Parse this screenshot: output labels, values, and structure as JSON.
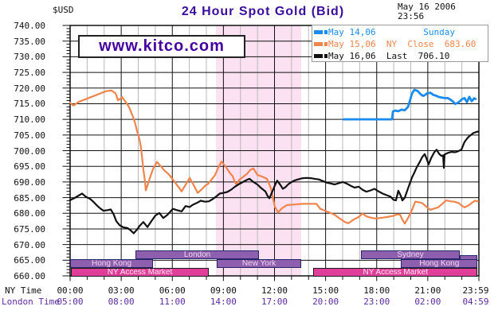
{
  "header": {
    "currency": "$USD",
    "title": "24 Hour Spot Gold (Bid)",
    "date": "May 16 2006",
    "time": "23:56"
  },
  "watermark": "www.kitco.com",
  "legend": {
    "rows": [
      {
        "name": "may-14",
        "color": "#1B8CEF",
        "text": "May 14,06         Sunday"
      },
      {
        "name": "may-15",
        "color": "#F0854C",
        "text": "May 15,06  NY  Close  683.60"
      },
      {
        "name": "may-16",
        "color": "#111111",
        "text": "May 16,06  Last  706.10"
      }
    ]
  },
  "axes": {
    "y_ticks": [
      "740.00",
      "735.00",
      "730.00",
      "725.00",
      "720.00",
      "715.00",
      "710.00",
      "705.00",
      "700.00",
      "695.00",
      "690.00",
      "685.00",
      "680.00",
      "675.00",
      "670.00",
      "665.00",
      "660.00"
    ],
    "ny_label": "NY Time",
    "london_label": "London Time",
    "tick_hours": [
      0,
      3,
      6,
      9,
      12,
      15,
      18,
      21,
      24
    ],
    "ny_times": [
      "00:00",
      "03:00",
      "06:00",
      "09:00",
      "12:00",
      "15:00",
      "18:00",
      "21:00",
      "23:59"
    ],
    "london_times": [
      "05:00",
      "08:00",
      "11:00",
      "14:00",
      "17:00",
      "20:00",
      "23:00",
      "02:00",
      "04:59"
    ]
  },
  "market_bars": [
    {
      "label": "Hong Kong",
      "kind": "session",
      "row": 2,
      "t0": 0,
      "t1": 4.87
    },
    {
      "label": "London",
      "kind": "session",
      "row": 1,
      "t0": 3.84,
      "t1": 11.09
    },
    {
      "label": "New York",
      "kind": "session",
      "row": 2,
      "t0": 8.61,
      "t1": 13.57
    },
    {
      "label": "Sydney",
      "kind": "session",
      "row": 1,
      "t0": 17.08,
      "t1": 22.88
    },
    {
      "label": "",
      "kind": "session",
      "row": 1.5,
      "t0": 22.88,
      "t1": 23.93
    },
    {
      "label": "Hong Kong",
      "kind": "session",
      "row": 2,
      "t0": 19.42,
      "t1": 23.93
    },
    {
      "label": "NY Access Market",
      "kind": "access",
      "row": 3,
      "t0": 0.05,
      "t1": 8.14
    },
    {
      "label": "NY Access Market",
      "kind": "access",
      "row": 3,
      "t0": 14.27,
      "t1": 23.93
    }
  ],
  "chart_data": {
    "type": "line",
    "title": "24 Hour Spot Gold (Bid)",
    "ylabel": "$USD",
    "x_unit": "hours, NY time (00:00-23:59)",
    "x_range": [
      0,
      24
    ],
    "ylim": [
      660,
      740
    ],
    "y_step": 5,
    "grid": "hourly gray verticals, 3-hour black verticals, 5.00 black horizontals",
    "session_band": {
      "start": 8.56,
      "end": 13.57,
      "color": "#FBE1F1",
      "note": "NY open-outcry session shading"
    },
    "series": [
      {
        "name": "May 14,06 (Sunday)",
        "color": "#1B8CEF",
        "width": 2.8,
        "points": [
          [
            16.05,
            710
          ],
          [
            18.9,
            710
          ],
          [
            18.95,
            712.5
          ],
          [
            19.09,
            712.8
          ],
          [
            19.27,
            712.6
          ],
          [
            19.46,
            713.1
          ],
          [
            19.65,
            712.9
          ],
          [
            19.84,
            714
          ],
          [
            19.98,
            716.5
          ],
          [
            20.07,
            718.2
          ],
          [
            20.21,
            719.4
          ],
          [
            20.35,
            719.2
          ],
          [
            20.44,
            718.9
          ],
          [
            20.58,
            718
          ],
          [
            20.72,
            717.5
          ],
          [
            20.82,
            717.7
          ],
          [
            20.96,
            718.3
          ],
          [
            21.15,
            718.5
          ],
          [
            21.33,
            717.8
          ],
          [
            21.52,
            717.5
          ],
          [
            21.61,
            717.2
          ],
          [
            21.8,
            717
          ],
          [
            21.99,
            716.8
          ],
          [
            22.17,
            716.8
          ],
          [
            22.36,
            716.2
          ],
          [
            22.5,
            715.6
          ],
          [
            22.6,
            714.9
          ],
          [
            22.74,
            715.2
          ],
          [
            22.88,
            715.8
          ],
          [
            23.02,
            716.5
          ],
          [
            23.16,
            716.8
          ],
          [
            23.3,
            715.5
          ],
          [
            23.44,
            717.2
          ],
          [
            23.58,
            715.8
          ],
          [
            23.72,
            716.7
          ],
          [
            23.81,
            716.5
          ]
        ]
      },
      {
        "name": "May 15,06",
        "color": "#F0854C",
        "width": 2.2,
        "ny_close": 683.6,
        "points": [
          [
            0,
            715.3
          ],
          [
            0.2,
            714.4
          ],
          [
            0.5,
            715.6
          ],
          [
            0.8,
            716.2
          ],
          [
            1.26,
            717.2
          ],
          [
            1.73,
            718.2
          ],
          [
            2.11,
            719
          ],
          [
            2.43,
            719.2
          ],
          [
            2.55,
            718.8
          ],
          [
            2.67,
            718.3
          ],
          [
            2.81,
            716.1
          ],
          [
            2.95,
            716.6
          ],
          [
            3.04,
            717.2
          ],
          [
            3.27,
            715.5
          ],
          [
            3.46,
            713.9
          ],
          [
            3.6,
            712.1
          ],
          [
            3.74,
            710.1
          ],
          [
            3.84,
            708.3
          ],
          [
            3.93,
            706.2
          ],
          [
            4.07,
            703.7
          ],
          [
            4.16,
            701.1
          ],
          [
            4.21,
            698.6
          ],
          [
            4.3,
            694
          ],
          [
            4.4,
            690
          ],
          [
            4.44,
            687.3
          ],
          [
            4.54,
            688.8
          ],
          [
            4.68,
            691.2
          ],
          [
            4.87,
            694.2
          ],
          [
            5.1,
            696.4
          ],
          [
            5.33,
            695
          ],
          [
            5.57,
            693.5
          ],
          [
            5.8,
            692.4
          ],
          [
            6.08,
            690.4
          ],
          [
            6.36,
            688.4
          ],
          [
            6.55,
            687
          ],
          [
            6.78,
            689.1
          ],
          [
            7.02,
            691.3
          ],
          [
            7.25,
            689
          ],
          [
            7.49,
            686.5
          ],
          [
            7.72,
            687.6
          ],
          [
            7.95,
            688.9
          ],
          [
            8.09,
            689.3
          ],
          [
            8.28,
            690.6
          ],
          [
            8.51,
            692.2
          ],
          [
            8.7,
            694.6
          ],
          [
            8.89,
            696.5
          ],
          [
            9.12,
            695
          ],
          [
            9.36,
            693
          ],
          [
            9.54,
            691.9
          ],
          [
            9.68,
            689.9
          ],
          [
            9.78,
            689.1
          ],
          [
            9.92,
            690.6
          ],
          [
            10.15,
            691.6
          ],
          [
            10.39,
            692.6
          ],
          [
            10.57,
            693.8
          ],
          [
            10.76,
            694.3
          ],
          [
            10.99,
            692.3
          ],
          [
            11.23,
            691.8
          ],
          [
            11.56,
            691
          ],
          [
            11.79,
            688
          ],
          [
            12.02,
            682.1
          ],
          [
            12.21,
            680.3
          ],
          [
            12.44,
            681.6
          ],
          [
            12.72,
            682.6
          ],
          [
            13.19,
            682.8
          ],
          [
            13.66,
            683
          ],
          [
            14.13,
            683
          ],
          [
            14.46,
            683
          ],
          [
            14.69,
            681.4
          ],
          [
            14.97,
            680.8
          ],
          [
            15.25,
            680.2
          ],
          [
            15.53,
            679.5
          ],
          [
            15.91,
            678
          ],
          [
            16.14,
            677.2
          ],
          [
            16.33,
            676.8
          ],
          [
            16.65,
            678
          ],
          [
            16.94,
            678.8
          ],
          [
            17.17,
            679.9
          ],
          [
            17.4,
            679
          ],
          [
            17.73,
            678.5
          ],
          [
            17.96,
            678.3
          ],
          [
            18.34,
            678.6
          ],
          [
            18.71,
            678.9
          ],
          [
            18.99,
            679.2
          ],
          [
            19.18,
            679.6
          ],
          [
            19.37,
            679.6
          ],
          [
            19.51,
            677.9
          ],
          [
            19.65,
            676.7
          ],
          [
            19.84,
            678.5
          ],
          [
            20.07,
            681
          ],
          [
            20.26,
            683.7
          ],
          [
            20.49,
            683.5
          ],
          [
            20.68,
            683.2
          ],
          [
            20.91,
            682.1
          ],
          [
            21.15,
            681.1
          ],
          [
            21.38,
            681.5
          ],
          [
            21.61,
            681.9
          ],
          [
            21.85,
            683
          ],
          [
            22.08,
            684.1
          ],
          [
            22.36,
            683.8
          ],
          [
            22.55,
            683.7
          ],
          [
            22.83,
            683.2
          ],
          [
            23.02,
            682.3
          ],
          [
            23.16,
            681.9
          ],
          [
            23.39,
            682.5
          ],
          [
            23.58,
            683.3
          ],
          [
            23.77,
            684
          ],
          [
            23.95,
            683.8
          ]
        ]
      },
      {
        "name": "May 16,06",
        "color": "#111111",
        "width": 2.2,
        "last": 706.1,
        "points": [
          [
            0,
            684.2
          ],
          [
            0.23,
            684.8
          ],
          [
            0.42,
            685.4
          ],
          [
            0.7,
            686.3
          ],
          [
            0.94,
            685.2
          ],
          [
            1.17,
            684.6
          ],
          [
            1.4,
            683.5
          ],
          [
            1.59,
            682.4
          ],
          [
            1.78,
            681.5
          ],
          [
            1.96,
            680.8
          ],
          [
            2.2,
            681
          ],
          [
            2.39,
            681.2
          ],
          [
            2.57,
            679.5
          ],
          [
            2.71,
            677.5
          ],
          [
            2.9,
            676.2
          ],
          [
            3.13,
            675.5
          ],
          [
            3.37,
            675.3
          ],
          [
            3.56,
            674.5
          ],
          [
            3.74,
            673.6
          ],
          [
            3.93,
            674.8
          ],
          [
            4.07,
            675.9
          ],
          [
            4.3,
            677.2
          ],
          [
            4.54,
            675.6
          ],
          [
            4.77,
            677.5
          ],
          [
            5.01,
            679.3
          ],
          [
            5.24,
            680.1
          ],
          [
            5.47,
            678.5
          ],
          [
            5.71,
            679.5
          ],
          [
            6.03,
            681.4
          ],
          [
            6.27,
            681
          ],
          [
            6.55,
            680.6
          ],
          [
            6.78,
            682.3
          ],
          [
            7.02,
            682
          ],
          [
            7.2,
            682.7
          ],
          [
            7.44,
            683.3
          ],
          [
            7.67,
            684
          ],
          [
            7.91,
            683.7
          ],
          [
            8.14,
            683.8
          ],
          [
            8.37,
            684.5
          ],
          [
            8.61,
            685.5
          ],
          [
            8.79,
            686.3
          ],
          [
            8.98,
            686.5
          ],
          [
            9.22,
            686.8
          ],
          [
            9.45,
            687.5
          ],
          [
            9.68,
            688.5
          ],
          [
            9.92,
            689.3
          ],
          [
            10.15,
            690
          ],
          [
            10.39,
            690.7
          ],
          [
            10.53,
            691
          ],
          [
            10.76,
            690
          ],
          [
            10.99,
            689.2
          ],
          [
            11.23,
            688
          ],
          [
            11.46,
            687
          ],
          [
            11.6,
            685.5
          ],
          [
            11.7,
            684.8
          ],
          [
            11.88,
            687
          ],
          [
            12.07,
            689.5
          ],
          [
            12.16,
            690.4
          ],
          [
            12.35,
            689
          ],
          [
            12.49,
            687.8
          ],
          [
            12.63,
            688.3
          ],
          [
            12.82,
            689.3
          ],
          [
            13.01,
            690
          ],
          [
            13.19,
            690.5
          ],
          [
            13.43,
            690.9
          ],
          [
            13.66,
            691.2
          ],
          [
            13.89,
            691.3
          ],
          [
            14.13,
            691.2
          ],
          [
            14.36,
            691
          ],
          [
            14.6,
            690.8
          ],
          [
            14.83,
            690.3
          ],
          [
            15.06,
            689.8
          ],
          [
            15.3,
            689.5
          ],
          [
            15.53,
            689.2
          ],
          [
            15.77,
            689.6
          ],
          [
            16,
            690
          ],
          [
            16.23,
            689.5
          ],
          [
            16.47,
            688.8
          ],
          [
            16.7,
            688.2
          ],
          [
            16.94,
            688.5
          ],
          [
            17.17,
            687.5
          ],
          [
            17.4,
            686.9
          ],
          [
            17.64,
            687.3
          ],
          [
            17.87,
            687.8
          ],
          [
            18.1,
            687
          ],
          [
            18.34,
            686.3
          ],
          [
            18.57,
            685.8
          ],
          [
            18.81,
            685.3
          ],
          [
            18.99,
            684.3
          ],
          [
            19.13,
            684.1
          ],
          [
            19.27,
            687.2
          ],
          [
            19.42,
            685.5
          ],
          [
            19.51,
            684.1
          ],
          [
            19.65,
            685
          ],
          [
            19.84,
            688
          ],
          [
            20.07,
            691.4
          ],
          [
            20.21,
            693
          ],
          [
            20.35,
            694.7
          ],
          [
            20.54,
            696.5
          ],
          [
            20.68,
            698
          ],
          [
            20.82,
            698.9
          ],
          [
            20.96,
            697
          ],
          [
            21.05,
            695.6
          ],
          [
            21.19,
            697.5
          ],
          [
            21.38,
            699.5
          ],
          [
            21.52,
            700.3
          ],
          [
            21.66,
            699
          ],
          [
            21.8,
            698.3
          ],
          [
            21.9,
            698.5
          ],
          [
            21.94,
            694.5
          ],
          [
            21.99,
            698.8
          ],
          [
            22.22,
            699.4
          ],
          [
            22.41,
            699.6
          ],
          [
            22.6,
            699.5
          ],
          [
            22.78,
            699.8
          ],
          [
            22.97,
            700.3
          ],
          [
            23.16,
            702.8
          ],
          [
            23.3,
            703.8
          ],
          [
            23.39,
            704.4
          ],
          [
            23.53,
            705
          ],
          [
            23.67,
            705.6
          ],
          [
            23.81,
            705.9
          ],
          [
            23.95,
            706.1
          ]
        ]
      }
    ]
  },
  "colors": {
    "title": "#3A0D9E",
    "watermark": "#43009E",
    "london_time": "#5E2AA0",
    "grid_minor": "#B8B8B8",
    "grid_major": "#111111",
    "band": "#FBE1F1",
    "session_bar": "#8E5FAE",
    "access_bar": "#E03F99"
  }
}
